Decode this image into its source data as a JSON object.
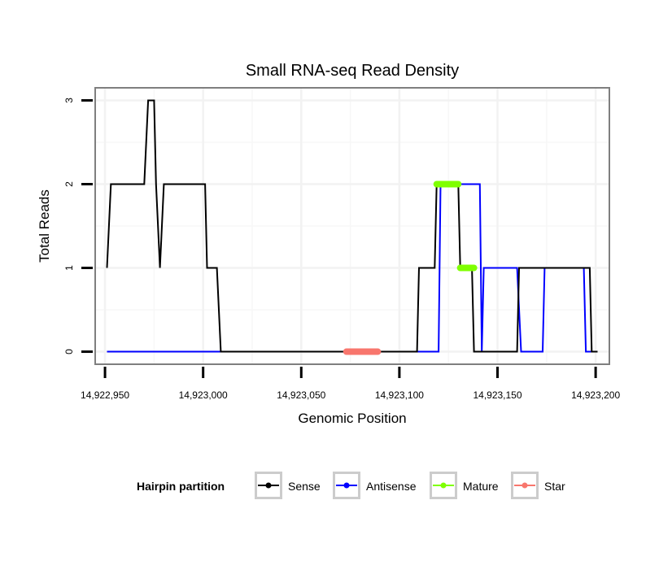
{
  "chart_data": {
    "type": "line",
    "title": "Small RNA-seq Read Density",
    "xlabel": "Genomic Position",
    "ylabel": "Total Reads",
    "xlim": [
      14922945,
      14923207
    ],
    "ylim": [
      -0.15,
      3.15
    ],
    "x_ticks": [
      14922950,
      14923000,
      14923050,
      14923100,
      14923150,
      14923200
    ],
    "x_tick_labels": [
      "14,922,950",
      "14,923,000",
      "14,923,050",
      "14,923,100",
      "14,923,150",
      "14,923,200"
    ],
    "y_ticks": [
      0,
      1,
      2,
      3
    ],
    "y_tick_labels": [
      "0",
      "1",
      "2",
      "3"
    ],
    "grid": true,
    "legend": {
      "title": "Hairpin partition",
      "position": "bottom",
      "entries": [
        {
          "label": "Sense",
          "color": "#000000"
        },
        {
          "label": "Antisense",
          "color": "#0000ff"
        },
        {
          "label": "Mature",
          "color": "#7fff00"
        },
        {
          "label": "Star",
          "color": "#f8766d"
        }
      ]
    },
    "series": [
      {
        "name": "Antisense",
        "color": "#0000ff",
        "x": [
          14922951,
          14923120,
          14923121,
          14923141,
          14923142,
          14923143,
          14923160,
          14923162,
          14923173,
          14923174,
          14923194,
          14923195,
          14923198
        ],
        "y": [
          0,
          0,
          2,
          2,
          0,
          1,
          1,
          0,
          0,
          1,
          1,
          0,
          0
        ]
      },
      {
        "name": "Sense",
        "color": "#000000",
        "x": [
          14922951,
          14922953,
          14922970,
          14922972,
          14922975,
          14922976,
          14922978,
          14922980,
          14923001,
          14923002,
          14923007,
          14923009,
          14923109,
          14923110,
          14923118,
          14923119,
          14923130,
          14923131,
          14923137,
          14923138,
          14923160,
          14923161,
          14923197,
          14923198,
          14923201
        ],
        "y": [
          1,
          2,
          2,
          3,
          3,
          2,
          1,
          2,
          2,
          1,
          1,
          0,
          0,
          1,
          1,
          2,
          2,
          1,
          1,
          0,
          0,
          1,
          1,
          0,
          0
        ]
      }
    ],
    "segments": [
      {
        "name": "Mature",
        "color": "#7fff00",
        "x": [
          14923119,
          14923130
        ],
        "y": 2
      },
      {
        "name": "Mature",
        "color": "#7fff00",
        "x": [
          14923131,
          14923138
        ],
        "y": 1
      },
      {
        "name": "Star",
        "color": "#f8766d",
        "x": [
          14923073,
          14923089
        ],
        "y": 0
      }
    ]
  }
}
